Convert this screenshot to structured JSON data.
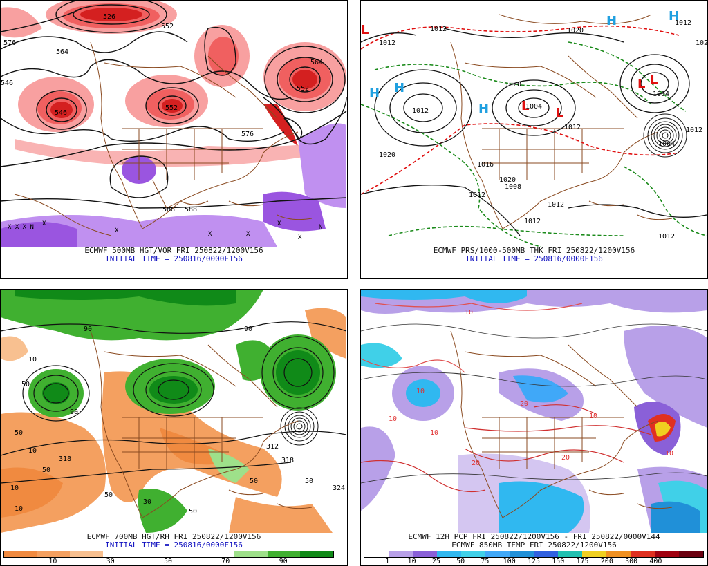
{
  "panels": [
    {
      "id": "p500",
      "caption_line1": "ECMWF 500MB HGT/VOR FRI 250822/1200V156",
      "caption_line2": "INITIAL TIME = 250816/0000F156",
      "contour_labels": [
        "526",
        "552",
        "564",
        "576",
        "546",
        "552",
        "552",
        "564",
        "576",
        "588",
        "588",
        "546",
        "576",
        "564",
        "528",
        "558"
      ],
      "fill_colors": {
        "vort_high": "#d42020",
        "vort_mid": "#f06060",
        "vort_low": "#f8a0a0",
        "neg_vort": "#9a55e0",
        "neg_vort_light": "#c090f0"
      }
    },
    {
      "id": "pmslp",
      "caption_line1": "ECMWF PRS/1000-500MB THK FRI 250822/1200V156",
      "caption_line2": "INITIAL TIME = 250816/0000F156",
      "isobar_labels": [
        "1012",
        "1012",
        "1020",
        "1012",
        "1020",
        "1004",
        "1012",
        "1004",
        "1020",
        "1012",
        "1016",
        "1020",
        "1012",
        "1012",
        "1012",
        "1012",
        "1008",
        "1012",
        "1004",
        "1020"
      ],
      "high_marker": "H",
      "low_marker": "L",
      "marker_colors": {
        "high": "#20a0e0",
        "low": "#e01010"
      }
    },
    {
      "id": "p700",
      "caption_line1": "ECMWF 700MB HGT/RH FRI 250822/1200V156",
      "caption_line2": "INITIAL TIME = 250816/0000F156",
      "contour_labels": [
        "10",
        "50",
        "90",
        "50",
        "10",
        "318",
        "312",
        "50",
        "10",
        "50",
        "90",
        "324",
        "50",
        "10",
        "318",
        "50",
        "90",
        "30",
        "50"
      ],
      "colorbar": {
        "colors": [
          "#f08a40",
          "#f4a060",
          "#f8c090",
          "#ffffff",
          "#ffffff",
          "#ffffff",
          "#ffffff",
          "#9ee08a",
          "#40b030",
          "#108a18"
        ],
        "labels": [
          "10",
          "30",
          "50",
          "70",
          "90"
        ]
      }
    },
    {
      "id": "ppcp",
      "caption_line1": "ECMWF 12H PCP FRI 250822/1200V156 - FRI 250822/0000V144",
      "caption_line2": "ECMWF 850MB TEMP FRI 250822/1200V156",
      "contour_labels": [
        "10",
        "10",
        "20",
        "10",
        "10",
        "20",
        "10",
        "20",
        "10"
      ],
      "colorbar": {
        "colors": [
          "#ffffff",
          "#b8a0e8",
          "#8a60d8",
          "#30b8f0",
          "#40d0e8",
          "#40a8f8",
          "#2090d8",
          "#3060e0",
          "#20c0b0",
          "#f0d020",
          "#f09020",
          "#e03020",
          "#a00010",
          "#6a0010"
        ],
        "labels": [
          "1",
          "10",
          "25",
          "50",
          "75",
          "100",
          "125",
          "150",
          "175",
          "200",
          "300",
          "400"
        ]
      }
    }
  ]
}
